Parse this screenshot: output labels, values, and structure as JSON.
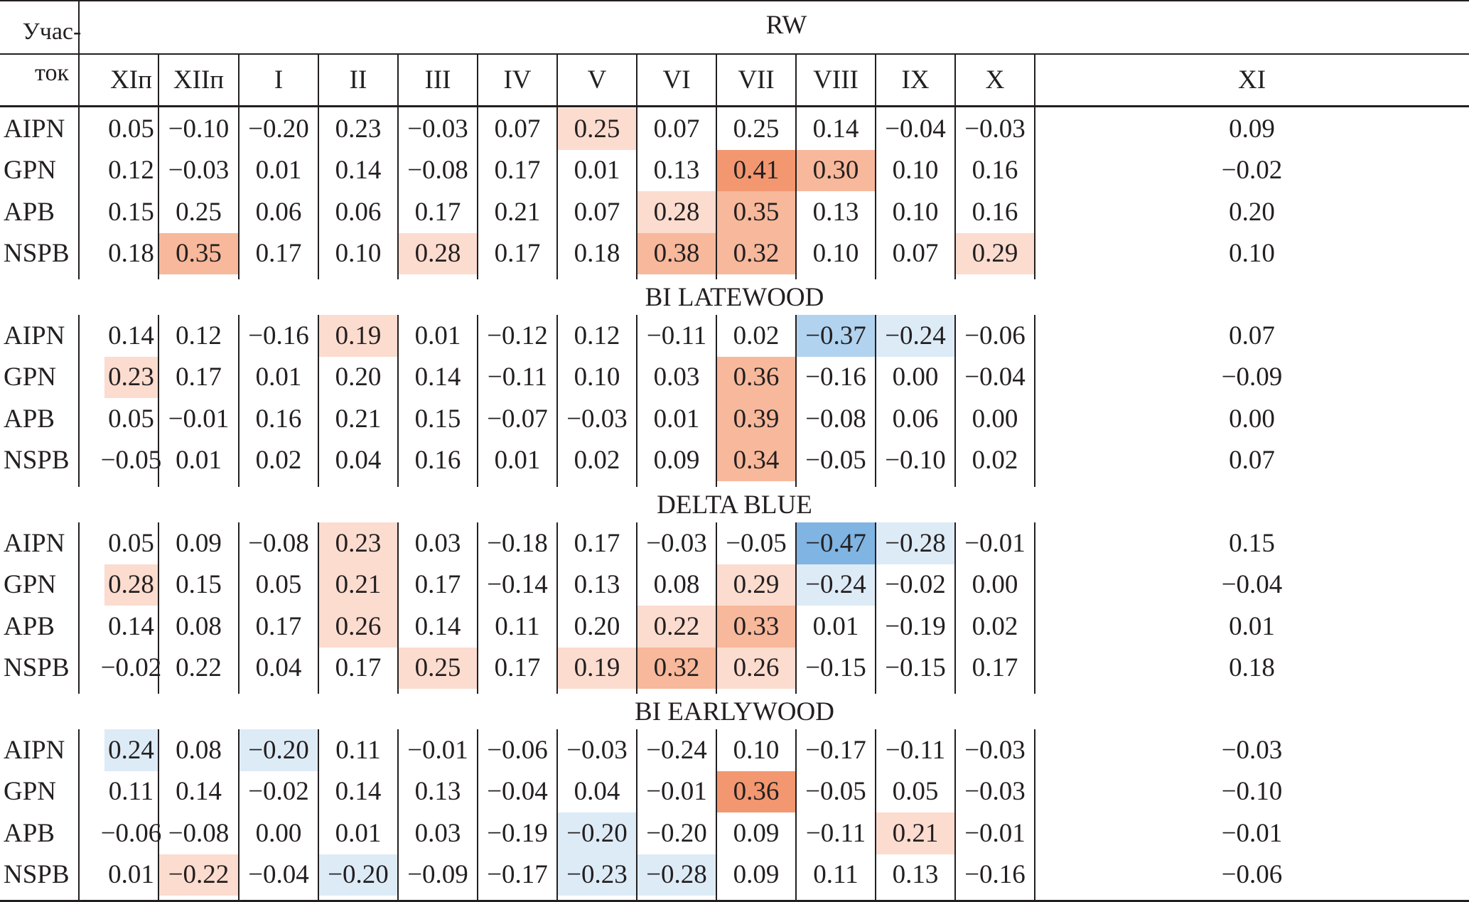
{
  "corner_label": [
    "Учас-",
    "ток"
  ],
  "title": "RW",
  "months": [
    "XIп",
    "XIIп",
    "I",
    "II",
    "III",
    "IV",
    "V",
    "VI",
    "VII",
    "VIII",
    "IX",
    "X",
    "XI"
  ],
  "colors": {
    "red1": "#fbdccf",
    "red2": "#f7b89b",
    "red3": "#f29770",
    "blue1": "#ddebf7",
    "blue2": "#b1d3ef",
    "blue3": "#7fb4e3"
  },
  "sections": [
    {
      "label": "",
      "rows": [
        {
          "site": "AIPN",
          "values": [
            "0.05",
            "−0.10",
            "−0.20",
            "0.23",
            "−0.03",
            "0.07",
            "0.25",
            "0.07",
            "0.25",
            "0.14",
            "−0.04",
            "−0.03",
            "0.09"
          ],
          "shade": [
            "",
            "",
            "",
            "",
            "",
            "",
            "red1",
            "",
            "",
            "",
            "",
            "",
            ""
          ]
        },
        {
          "site": "GPN",
          "values": [
            "0.12",
            "−0.03",
            "0.01",
            "0.14",
            "−0.08",
            "0.17",
            "0.01",
            "0.13",
            "0.41",
            "0.30",
            "0.10",
            "0.16",
            "−0.02"
          ],
          "shade": [
            "",
            "",
            "",
            "",
            "",
            "",
            "",
            "",
            "red3",
            "red2",
            "",
            "",
            ""
          ]
        },
        {
          "site": "APB",
          "values": [
            "0.15",
            "0.25",
            "0.06",
            "0.06",
            "0.17",
            "0.21",
            "0.07",
            "0.28",
            "0.35",
            "0.13",
            "0.10",
            "0.16",
            "0.20"
          ],
          "shade": [
            "",
            "",
            "",
            "",
            "",
            "",
            "",
            "red1",
            "red2",
            "",
            "",
            "",
            ""
          ]
        },
        {
          "site": "NSPB",
          "values": [
            "0.18",
            "0.35",
            "0.17",
            "0.10",
            "0.28",
            "0.17",
            "0.18",
            "0.38",
            "0.32",
            "0.10",
            "0.07",
            "0.29",
            "0.10"
          ],
          "shade": [
            "",
            "red2",
            "",
            "",
            "red1",
            "",
            "",
            "red2",
            "red2",
            "",
            "",
            "red1",
            ""
          ]
        }
      ]
    },
    {
      "label": "BI LATEWOOD",
      "rows": [
        {
          "site": "AIPN",
          "values": [
            "0.14",
            "0.12",
            "−0.16",
            "0.19",
            "0.01",
            "−0.12",
            "0.12",
            "−0.11",
            "0.02",
            "−0.37",
            "−0.24",
            "−0.06",
            "0.07"
          ],
          "shade": [
            "",
            "",
            "",
            "red1",
            "",
            "",
            "",
            "",
            "",
            "blue2",
            "blue1",
            "",
            ""
          ]
        },
        {
          "site": "GPN",
          "values": [
            "0.23",
            "0.17",
            "0.01",
            "0.20",
            "0.14",
            "−0.11",
            "0.10",
            "0.03",
            "0.36",
            "−0.16",
            "0.00",
            "−0.04",
            "−0.09"
          ],
          "shade": [
            "red1",
            "",
            "",
            "",
            "",
            "",
            "",
            "",
            "red2",
            "",
            "",
            "",
            ""
          ]
        },
        {
          "site": "APB",
          "values": [
            "0.05",
            "−0.01",
            "0.16",
            "0.21",
            "0.15",
            "−0.07",
            "−0.03",
            "0.01",
            "0.39",
            "−0.08",
            "0.06",
            "0.00",
            "0.00"
          ],
          "shade": [
            "",
            "",
            "",
            "",
            "",
            "",
            "",
            "",
            "red2",
            "",
            "",
            "",
            ""
          ]
        },
        {
          "site": "NSPB",
          "values": [
            "−0.05",
            "0.01",
            "0.02",
            "0.04",
            "0.16",
            "0.01",
            "0.02",
            "0.09",
            "0.34",
            "−0.05",
            "−0.10",
            "0.02",
            "0.07"
          ],
          "shade": [
            "",
            "",
            "",
            "",
            "",
            "",
            "",
            "",
            "red2",
            "",
            "",
            "",
            ""
          ]
        }
      ]
    },
    {
      "label": "DELTA BLUE",
      "rows": [
        {
          "site": "AIPN",
          "values": [
            "0.05",
            "0.09",
            "−0.08",
            "0.23",
            "0.03",
            "−0.18",
            "0.17",
            "−0.03",
            "−0.05",
            "−0.47",
            "−0.28",
            "−0.01",
            "0.15"
          ],
          "shade": [
            "",
            "",
            "",
            "red1",
            "",
            "",
            "",
            "",
            "",
            "blue3",
            "blue1",
            "",
            ""
          ]
        },
        {
          "site": "GPN",
          "values": [
            "0.28",
            "0.15",
            "0.05",
            "0.21",
            "0.17",
            "−0.14",
            "0.13",
            "0.08",
            "0.29",
            "−0.24",
            "−0.02",
            "0.00",
            "−0.04"
          ],
          "shade": [
            "red1",
            "",
            "",
            "red1",
            "",
            "",
            "",
            "",
            "red1",
            "blue1",
            "",
            "",
            ""
          ]
        },
        {
          "site": "APB",
          "values": [
            "0.14",
            "0.08",
            "0.17",
            "0.26",
            "0.14",
            "0.11",
            "0.20",
            "0.22",
            "0.33",
            "0.01",
            "−0.19",
            "0.02",
            "0.01"
          ],
          "shade": [
            "",
            "",
            "",
            "red1",
            "",
            "",
            "",
            "red1",
            "red2",
            "",
            "",
            "",
            ""
          ]
        },
        {
          "site": "NSPB",
          "values": [
            "−0.02",
            "0.22",
            "0.04",
            "0.17",
            "0.25",
            "0.17",
            "0.19",
            "0.32",
            "0.26",
            "−0.15",
            "−0.15",
            "0.17",
            "0.18"
          ],
          "shade": [
            "",
            "",
            "",
            "",
            "red1",
            "",
            "red1",
            "red2",
            "red1",
            "",
            "",
            "",
            ""
          ]
        }
      ]
    },
    {
      "label": "BI EARLYWOOD",
      "rows": [
        {
          "site": "AIPN",
          "values": [
            "0.24",
            "0.08",
            "−0.20",
            "0.11",
            "−0.01",
            "−0.06",
            "−0.03",
            "−0.24",
            "0.10",
            "−0.17",
            "−0.11",
            "−0.03",
            "−0.03"
          ],
          "shade": [
            "blue1",
            "",
            "blue1",
            "",
            "",
            "",
            "",
            "",
            "",
            "",
            "",
            "",
            ""
          ]
        },
        {
          "site": "GPN",
          "values": [
            "0.11",
            "0.14",
            "−0.02",
            "0.14",
            "0.13",
            "−0.04",
            "0.04",
            "−0.01",
            "0.36",
            "−0.05",
            "0.05",
            "−0.03",
            "−0.10"
          ],
          "shade": [
            "",
            "",
            "",
            "",
            "",
            "",
            "",
            "",
            "red3",
            "",
            "",
            "",
            ""
          ]
        },
        {
          "site": "APB",
          "values": [
            "−0.06",
            "−0.08",
            "0.00",
            "0.01",
            "0.03",
            "−0.19",
            "−0.20",
            "−0.20",
            "0.09",
            "−0.11",
            "0.21",
            "−0.01",
            "−0.01"
          ],
          "shade": [
            "",
            "",
            "",
            "",
            "",
            "",
            "blue1",
            "",
            "",
            "",
            "red1",
            "",
            ""
          ]
        },
        {
          "site": "NSPB",
          "values": [
            "0.01",
            "−0.22",
            "−0.04",
            "−0.20",
            "−0.09",
            "−0.17",
            "−0.23",
            "−0.28",
            "0.09",
            "0.11",
            "0.13",
            "−0.16",
            "−0.06"
          ],
          "shade": [
            "",
            "red1",
            "",
            "blue1",
            "",
            "",
            "blue1",
            "blue1",
            "",
            "",
            "",
            "",
            ""
          ]
        }
      ]
    }
  ]
}
